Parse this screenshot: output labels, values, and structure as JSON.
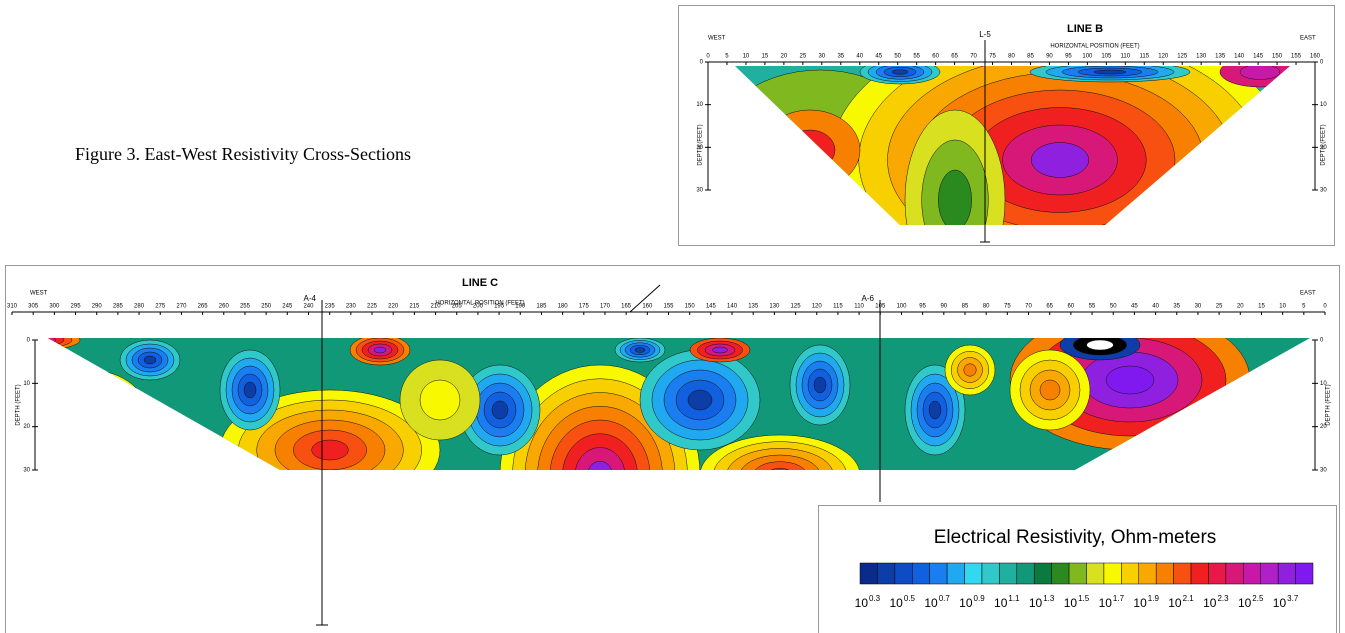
{
  "caption": "Figure 3.  East-West Resistivity Cross-Sections",
  "line_b": {
    "title": "LINE B",
    "west": "WEST",
    "east": "EAST",
    "x_label": "HORIZONTAL POSITION (FEET)",
    "y_label": "DEPTH (FEET)",
    "xticks": [
      0,
      5,
      10,
      15,
      20,
      25,
      30,
      35,
      40,
      45,
      50,
      55,
      60,
      65,
      70,
      75,
      80,
      85,
      90,
      95,
      100,
      105,
      110,
      115,
      120,
      125,
      130,
      135,
      140,
      145,
      150,
      155,
      160
    ],
    "yticks": [
      0,
      10,
      20,
      30
    ],
    "marker": "L-5"
  },
  "line_c": {
    "title": "LINE C",
    "west": "WEST",
    "east": "EAST",
    "x_label": "HORIZONTAL POSITION (FEET)",
    "y_label": "DEPTH (FEET)",
    "xticks": [
      310,
      305,
      300,
      295,
      290,
      285,
      280,
      275,
      270,
      265,
      260,
      255,
      250,
      245,
      240,
      235,
      230,
      225,
      220,
      215,
      210,
      205,
      200,
      195,
      190,
      185,
      180,
      175,
      170,
      165,
      160,
      155,
      150,
      145,
      140,
      135,
      130,
      125,
      120,
      115,
      110,
      105,
      100,
      95,
      90,
      85,
      80,
      75,
      70,
      65,
      60,
      55,
      50,
      45,
      40,
      35,
      30,
      25,
      20,
      15,
      10,
      5,
      0
    ],
    "yticks": [
      0,
      10,
      20,
      30
    ],
    "markers": [
      "A-4",
      "A-6"
    ]
  },
  "legend": {
    "title": "Electrical Resistivity, Ohm-meters",
    "colors": [
      "#0a2a8c",
      "#0d3ea8",
      "#0d4cc4",
      "#1060e0",
      "#1a7ef0",
      "#20a8f0",
      "#30d8f0",
      "#30c8c8",
      "#20b0a0",
      "#109878",
      "#0a7a40",
      "#2a8a20",
      "#80b820",
      "#d8e020",
      "#f8f800",
      "#f8d000",
      "#f8a800",
      "#f88000",
      "#f85010",
      "#f02020",
      "#e81848",
      "#d81878",
      "#c818a8",
      "#b020c8",
      "#9020e0",
      "#8018f0"
    ],
    "labels": [
      {
        "base": "10",
        "exp": "0.3"
      },
      {
        "base": "10",
        "exp": "0.5"
      },
      {
        "base": "10",
        "exp": "0.7"
      },
      {
        "base": "10",
        "exp": "0.9"
      },
      {
        "base": "10",
        "exp": "1.1"
      },
      {
        "base": "10",
        "exp": "1.3"
      },
      {
        "base": "10",
        "exp": "1.5"
      },
      {
        "base": "10",
        "exp": "1.7"
      },
      {
        "base": "10",
        "exp": "1.9"
      },
      {
        "base": "10",
        "exp": "2.1"
      },
      {
        "base": "10",
        "exp": "2.3"
      },
      {
        "base": "10",
        "exp": "2.5"
      },
      {
        "base": "10",
        "exp": "3.7"
      }
    ]
  }
}
